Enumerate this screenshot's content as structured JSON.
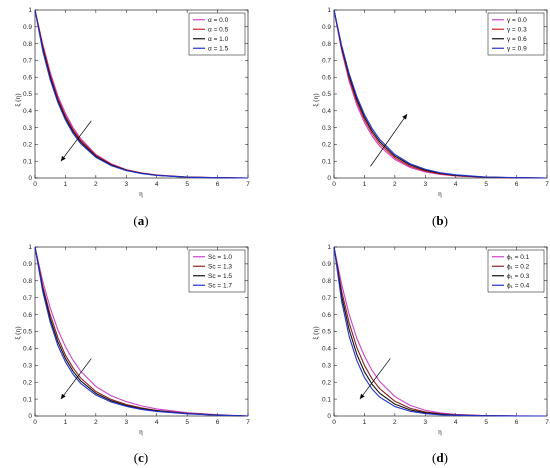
{
  "chart_data": [
    {
      "type": "line",
      "panel": "a",
      "caption": "(a)",
      "xlabel": "η",
      "ylabel": "ξ (η)",
      "xlim": [
        0,
        7
      ],
      "ylim": [
        0,
        1
      ],
      "xticks": [
        "0",
        "1",
        "2",
        "3",
        "4",
        "5",
        "6",
        "7"
      ],
      "yticks": [
        "0",
        "0.1",
        "0.2",
        "0.3",
        "0.4",
        "0.5",
        "0.6",
        "0.7",
        "0.8",
        "0.9",
        "1"
      ],
      "legend_position": "top-right",
      "arrow": "down-left",
      "x": [
        0,
        0.25,
        0.5,
        0.75,
        1,
        1.25,
        1.5,
        2,
        2.5,
        3,
        3.5,
        4,
        5,
        6,
        7
      ],
      "series": [
        {
          "name": "α = 0.0",
          "color": "#cc44cc",
          "values": [
            1,
            0.8,
            0.63,
            0.49,
            0.385,
            0.3,
            0.235,
            0.14,
            0.085,
            0.05,
            0.03,
            0.018,
            0.006,
            0.002,
            0
          ]
        },
        {
          "name": "α = 0.5",
          "color": "#cc2222",
          "values": [
            1,
            0.79,
            0.615,
            0.475,
            0.37,
            0.288,
            0.225,
            0.135,
            0.082,
            0.048,
            0.029,
            0.017,
            0.006,
            0.002,
            0
          ]
        },
        {
          "name": "α = 1.0",
          "color": "#111111",
          "values": [
            1,
            0.775,
            0.6,
            0.462,
            0.358,
            0.277,
            0.215,
            0.129,
            0.078,
            0.046,
            0.028,
            0.016,
            0.005,
            0.002,
            0
          ]
        },
        {
          "name": "α = 1.5",
          "color": "#2233cc",
          "values": [
            1,
            0.76,
            0.585,
            0.45,
            0.345,
            0.265,
            0.205,
            0.123,
            0.074,
            0.044,
            0.026,
            0.015,
            0.005,
            0.001,
            0
          ]
        }
      ]
    },
    {
      "type": "line",
      "panel": "b",
      "caption": "(b)",
      "xlabel": "η",
      "ylabel": "ξ (η)",
      "xlim": [
        0,
        7
      ],
      "ylim": [
        0,
        1
      ],
      "xticks": [
        "0",
        "1",
        "2",
        "3",
        "4",
        "5",
        "6",
        "7"
      ],
      "yticks": [
        "0",
        "0.1",
        "0.2",
        "0.3",
        "0.4",
        "0.5",
        "0.6",
        "0.7",
        "0.8",
        "0.9",
        "1"
      ],
      "legend_position": "top-right",
      "arrow": "up-right",
      "x": [
        0,
        0.25,
        0.5,
        0.75,
        1,
        1.25,
        1.5,
        2,
        2.5,
        3,
        3.5,
        4,
        5,
        6,
        7
      ],
      "series": [
        {
          "name": "γ = 0.0",
          "color": "#cc44cc",
          "values": [
            1,
            0.76,
            0.575,
            0.435,
            0.33,
            0.25,
            0.19,
            0.11,
            0.063,
            0.036,
            0.021,
            0.012,
            0.004,
            0.001,
            0
          ]
        },
        {
          "name": "γ = 0.3",
          "color": "#cc2222",
          "values": [
            1,
            0.77,
            0.59,
            0.452,
            0.347,
            0.266,
            0.204,
            0.12,
            0.07,
            0.041,
            0.024,
            0.014,
            0.005,
            0.001,
            0
          ]
        },
        {
          "name": "γ = 0.6",
          "color": "#111111",
          "values": [
            1,
            0.78,
            0.605,
            0.468,
            0.362,
            0.28,
            0.217,
            0.13,
            0.078,
            0.046,
            0.028,
            0.016,
            0.005,
            0.002,
            0
          ]
        },
        {
          "name": "γ = 0.9",
          "color": "#2233cc",
          "values": [
            1,
            0.79,
            0.62,
            0.485,
            0.378,
            0.295,
            0.23,
            0.14,
            0.085,
            0.052,
            0.031,
            0.019,
            0.006,
            0.002,
            0
          ]
        }
      ]
    },
    {
      "type": "line",
      "panel": "c",
      "caption": "(c)",
      "xlabel": "η",
      "ylabel": "ξ (η)",
      "xlim": [
        0,
        7
      ],
      "ylim": [
        0,
        1
      ],
      "xticks": [
        "0",
        "1",
        "2",
        "3",
        "4",
        "5",
        "6",
        "7"
      ],
      "yticks": [
        "0",
        "0.1",
        "0.2",
        "0.3",
        "0.4",
        "0.5",
        "0.6",
        "0.7",
        "0.8",
        "0.9",
        "1"
      ],
      "legend_position": "top-right",
      "arrow": "down-left",
      "x": [
        0,
        0.25,
        0.5,
        0.75,
        1,
        1.25,
        1.5,
        2,
        2.5,
        3,
        3.5,
        4,
        5,
        6,
        7
      ],
      "series": [
        {
          "name": "Sc = 1.0",
          "color": "#cc44cc",
          "values": [
            1,
            0.8,
            0.64,
            0.51,
            0.41,
            0.33,
            0.265,
            0.175,
            0.12,
            0.085,
            0.06,
            0.042,
            0.02,
            0.008,
            0
          ]
        },
        {
          "name": "Sc = 1.3",
          "color": "#882222",
          "values": [
            1,
            0.77,
            0.6,
            0.465,
            0.36,
            0.285,
            0.225,
            0.145,
            0.098,
            0.068,
            0.048,
            0.033,
            0.016,
            0.006,
            0
          ]
        },
        {
          "name": "Sc = 1.5",
          "color": "#111111",
          "values": [
            1,
            0.755,
            0.575,
            0.44,
            0.34,
            0.265,
            0.208,
            0.134,
            0.09,
            0.062,
            0.043,
            0.03,
            0.014,
            0.005,
            0
          ]
        },
        {
          "name": "Sc = 1.7",
          "color": "#2233cc",
          "values": [
            1,
            0.74,
            0.555,
            0.418,
            0.32,
            0.247,
            0.193,
            0.124,
            0.083,
            0.057,
            0.039,
            0.027,
            0.013,
            0.005,
            0
          ]
        }
      ]
    },
    {
      "type": "line",
      "panel": "d",
      "caption": "(d)",
      "xlabel": "η",
      "ylabel": "ξ (η)",
      "xlim": [
        0,
        7
      ],
      "ylim": [
        0,
        1
      ],
      "xticks": [
        "0",
        "1",
        "2",
        "3",
        "4",
        "5",
        "6",
        "7"
      ],
      "yticks": [
        "0",
        "0.1",
        "0.2",
        "0.3",
        "0.4",
        "0.5",
        "0.6",
        "0.7",
        "0.8",
        "0.9",
        "1"
      ],
      "legend_position": "top-right",
      "arrow": "down-left",
      "x": [
        0,
        0.25,
        0.5,
        0.75,
        1,
        1.25,
        1.5,
        2,
        2.5,
        3,
        3.5,
        4,
        5,
        6,
        7
      ],
      "series": [
        {
          "name": "ϕ₁ = 0.1",
          "color": "#cc44cc",
          "values": [
            1,
            0.78,
            0.6,
            0.46,
            0.355,
            0.27,
            0.205,
            0.115,
            0.063,
            0.034,
            0.018,
            0.009,
            0.002,
            0.001,
            0
          ]
        },
        {
          "name": "ϕ₁ = 0.2",
          "color": "#882222",
          "values": [
            1,
            0.74,
            0.55,
            0.405,
            0.3,
            0.22,
            0.162,
            0.087,
            0.046,
            0.024,
            0.013,
            0.007,
            0.002,
            0,
            0
          ]
        },
        {
          "name": "ϕ₁ = 0.3",
          "color": "#111111",
          "values": [
            1,
            0.71,
            0.51,
            0.365,
            0.262,
            0.188,
            0.135,
            0.07,
            0.036,
            0.019,
            0.01,
            0.005,
            0.001,
            0,
            0
          ]
        },
        {
          "name": "ϕ₁ = 0.4",
          "color": "#2233cc",
          "values": [
            1,
            0.68,
            0.47,
            0.328,
            0.228,
            0.16,
            0.112,
            0.056,
            0.028,
            0.014,
            0.007,
            0.004,
            0.001,
            0,
            0
          ]
        }
      ]
    }
  ]
}
